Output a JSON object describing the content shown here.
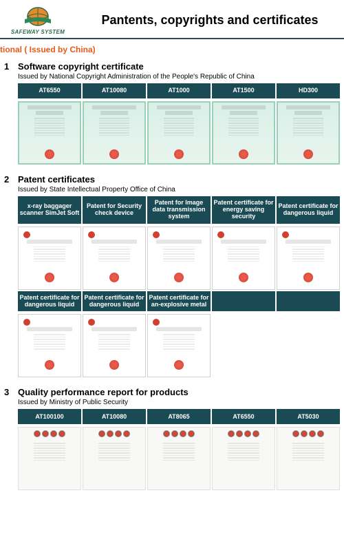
{
  "logo": {
    "text": "SAFEWAY SYSTEM"
  },
  "page_title": "Pantents, copyrights and certificates",
  "region_header": "tional ( Issued by China)",
  "sections": [
    {
      "num": "1",
      "title": "Software copyright certificate",
      "subtitle": "Issued by National Copyright Administration of the People's Republic of China",
      "rows": [
        {
          "tabs": [
            "AT6550",
            "AT10080",
            "AT1000",
            "AT1500",
            "HD300"
          ],
          "style": "teal"
        }
      ]
    },
    {
      "num": "2",
      "title": "Patent certificates",
      "subtitle": "Issued by State Intellectual Property Office of China",
      "rows": [
        {
          "tabs": [
            "x-ray baggager scanner SimJet Soft",
            "Patent for Security check device",
            "Patent for Image data transmission system",
            "Patent certificate for energy saving security",
            "Patent certificate for dangerous liquid"
          ],
          "style": "white"
        },
        {
          "tabs": [
            "Patent certificate for dangerous liquid",
            "Patent certificate for dangerous liquid",
            "Patent certificate for an-explosive metal",
            "",
            ""
          ],
          "style": "white",
          "fill": 3
        }
      ]
    },
    {
      "num": "3",
      "title": "Quality performance report for products",
      "subtitle": "Issued by Ministry of Public Security",
      "rows": [
        {
          "tabs": [
            "AT100100",
            "AT10080",
            "AT8065",
            "AT6550",
            "AT5030"
          ],
          "style": "seals"
        }
      ]
    }
  ],
  "colors": {
    "tab_bg": "#1a4a54",
    "header_orange": "#e85a1a",
    "border": "#2a4a5a"
  }
}
